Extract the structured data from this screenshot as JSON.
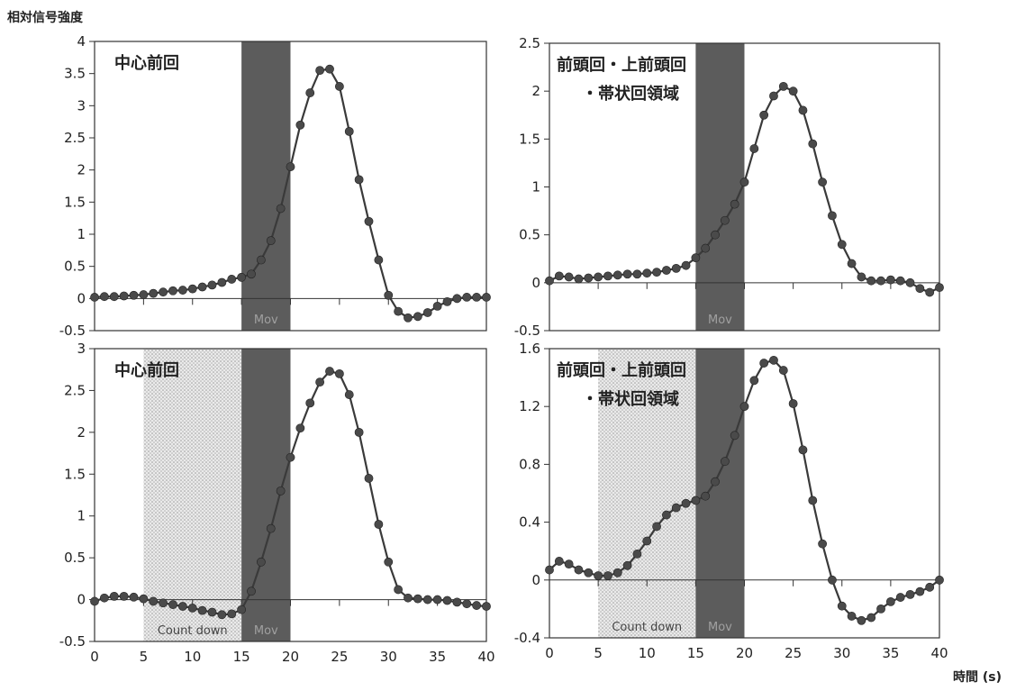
{
  "figure": {
    "ylabel": "相対信号強度",
    "xlabel": "時間 (s)"
  },
  "colors": {
    "line": "#3a3a3a",
    "marker": "#4a4a4a",
    "mov_band": "#5c5c5c",
    "countdown_band": "#d9d9d9"
  },
  "chart_data": [
    {
      "type": "line",
      "title": "中心前回",
      "xlim": [
        0,
        40
      ],
      "ylim": [
        -0.5,
        4
      ],
      "xticks": [
        "0",
        "5",
        "10",
        "15",
        "20",
        "25",
        "30",
        "35",
        "40"
      ],
      "yticks": [
        "-0.5",
        "0",
        "0.5",
        "1",
        "1.5",
        "2",
        "2.5",
        "3",
        "3.5",
        "4"
      ],
      "bands": [
        {
          "label": "Mov",
          "x0": 15,
          "x1": 20
        }
      ],
      "x": [
        0,
        1,
        2,
        3,
        4,
        5,
        6,
        7,
        8,
        9,
        10,
        11,
        12,
        13,
        14,
        15,
        16,
        17,
        18,
        19,
        20,
        21,
        22,
        23,
        24,
        25,
        26,
        27,
        28,
        29,
        30,
        31,
        32,
        33,
        34,
        35,
        36,
        37,
        38,
        39,
        40
      ],
      "values": [
        0.02,
        0.03,
        0.03,
        0.04,
        0.05,
        0.06,
        0.08,
        0.1,
        0.12,
        0.13,
        0.15,
        0.18,
        0.21,
        0.25,
        0.3,
        0.33,
        0.38,
        0.6,
        0.9,
        1.4,
        2.05,
        2.7,
        3.2,
        3.55,
        3.57,
        3.3,
        2.6,
        1.85,
        1.2,
        0.6,
        0.05,
        -0.2,
        -0.3,
        -0.28,
        -0.22,
        -0.12,
        -0.05,
        0.0,
        0.02,
        0.02,
        0.02
      ]
    },
    {
      "type": "line",
      "title": "前頭回・上前頭回",
      "title2": "・帯状回領域",
      "xlim": [
        0,
        40
      ],
      "ylim": [
        -0.5,
        2.5
      ],
      "xticks": [
        "0",
        "5",
        "10",
        "15",
        "20",
        "25",
        "30",
        "35",
        "40"
      ],
      "yticks": [
        "-0.5",
        "0",
        "0.5",
        "1",
        "1.5",
        "2",
        "2.5"
      ],
      "bands": [
        {
          "label": "Mov",
          "x0": 15,
          "x1": 20
        }
      ],
      "x": [
        0,
        1,
        2,
        3,
        4,
        5,
        6,
        7,
        8,
        9,
        10,
        11,
        12,
        13,
        14,
        15,
        16,
        17,
        18,
        19,
        20,
        21,
        22,
        23,
        24,
        25,
        26,
        27,
        28,
        29,
        30,
        31,
        32,
        33,
        34,
        35,
        36,
        37,
        38,
        39,
        40
      ],
      "values": [
        0.02,
        0.07,
        0.06,
        0.04,
        0.05,
        0.06,
        0.07,
        0.08,
        0.09,
        0.09,
        0.1,
        0.11,
        0.13,
        0.15,
        0.18,
        0.26,
        0.36,
        0.5,
        0.65,
        0.82,
        1.05,
        1.4,
        1.75,
        1.95,
        2.05,
        2.0,
        1.8,
        1.45,
        1.05,
        0.7,
        0.4,
        0.2,
        0.06,
        0.02,
        0.02,
        0.03,
        0.02,
        0.0,
        -0.06,
        -0.1,
        -0.05
      ]
    },
    {
      "type": "line",
      "title": "中心前回",
      "xlim": [
        0,
        40
      ],
      "ylim": [
        -0.5,
        3
      ],
      "xticks": [
        "0",
        "5",
        "10",
        "15",
        "20",
        "25",
        "30",
        "35",
        "40"
      ],
      "yticks": [
        "-0.5",
        "0",
        "0.5",
        "1",
        "1.5",
        "2",
        "2.5",
        "3"
      ],
      "bands": [
        {
          "label": "Count down",
          "x0": 5,
          "x1": 15
        },
        {
          "label": "Mov",
          "x0": 15,
          "x1": 20
        }
      ],
      "x": [
        0,
        1,
        2,
        3,
        4,
        5,
        6,
        7,
        8,
        9,
        10,
        11,
        12,
        13,
        14,
        15,
        16,
        17,
        18,
        19,
        20,
        21,
        22,
        23,
        24,
        25,
        26,
        27,
        28,
        29,
        30,
        31,
        32,
        33,
        34,
        35,
        36,
        37,
        38,
        39,
        40
      ],
      "values": [
        -0.02,
        0.02,
        0.04,
        0.04,
        0.03,
        0.01,
        -0.02,
        -0.04,
        -0.06,
        -0.08,
        -0.1,
        -0.13,
        -0.15,
        -0.18,
        -0.17,
        -0.12,
        0.1,
        0.45,
        0.85,
        1.3,
        1.7,
        2.05,
        2.35,
        2.6,
        2.73,
        2.7,
        2.45,
        2.0,
        1.45,
        0.9,
        0.45,
        0.12,
        0.02,
        0.01,
        0.0,
        0.0,
        -0.01,
        -0.03,
        -0.05,
        -0.07,
        -0.08
      ]
    },
    {
      "type": "line",
      "title": "前頭回・上前頭回",
      "title2": "・帯状回領域",
      "xlim": [
        0,
        40
      ],
      "ylim": [
        -0.4,
        1.6
      ],
      "xticks": [
        "0",
        "5",
        "10",
        "15",
        "20",
        "25",
        "30",
        "35",
        "40"
      ],
      "yticks": [
        "-0.4",
        "0",
        "0.4",
        "0.8",
        "1.2",
        "1.6"
      ],
      "bands": [
        {
          "label": "Count down",
          "x0": 5,
          "x1": 15
        },
        {
          "label": "Mov",
          "x0": 15,
          "x1": 20
        }
      ],
      "x": [
        0,
        1,
        2,
        3,
        4,
        5,
        6,
        7,
        8,
        9,
        10,
        11,
        12,
        13,
        14,
        15,
        16,
        17,
        18,
        19,
        20,
        21,
        22,
        23,
        24,
        25,
        26,
        27,
        28,
        29,
        30,
        31,
        32,
        33,
        34,
        35,
        36,
        37,
        38,
        39,
        40
      ],
      "values": [
        0.07,
        0.13,
        0.11,
        0.07,
        0.05,
        0.03,
        0.03,
        0.05,
        0.1,
        0.18,
        0.27,
        0.37,
        0.45,
        0.5,
        0.53,
        0.55,
        0.58,
        0.68,
        0.82,
        1.0,
        1.2,
        1.38,
        1.5,
        1.52,
        1.45,
        1.22,
        0.9,
        0.55,
        0.25,
        0.0,
        -0.18,
        -0.25,
        -0.28,
        -0.26,
        -0.2,
        -0.15,
        -0.12,
        -0.1,
        -0.08,
        -0.05,
        0.0
      ]
    }
  ]
}
